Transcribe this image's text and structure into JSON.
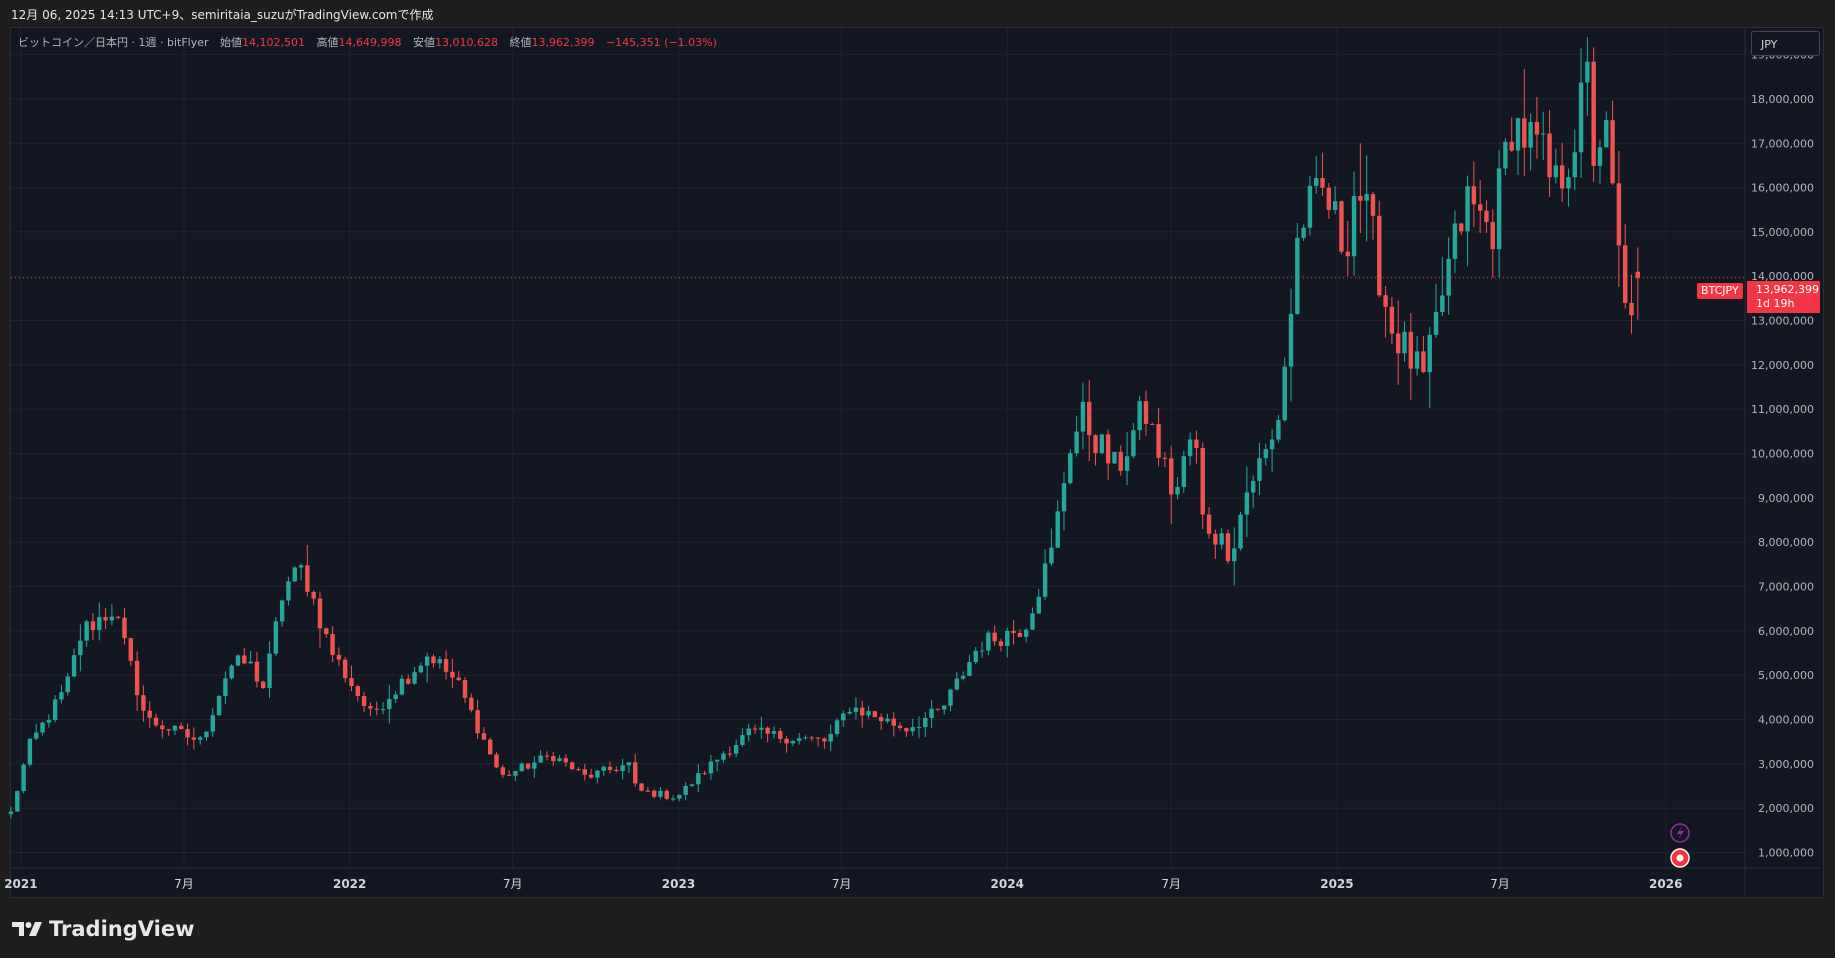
{
  "header": {
    "caption": "12月 06, 2025 14:13 UTC+9、semiritaia_suzuがTradingView.comで作成"
  },
  "legend": {
    "symbol": "ビットコイン／日本円 · 1週 · bitFlyer",
    "open_label": "始値",
    "open": "14,102,501",
    "high_label": "高値",
    "high": "14,649,998",
    "low_label": "安値",
    "low": "13,010,628",
    "close_label": "終値",
    "close": "13,962,399",
    "change": "−145,351 (−1.03%)"
  },
  "currency_button": "JPY",
  "last_price": {
    "symbol": "BTCJPY",
    "price": "13,962,399",
    "countdown": "1d 19h",
    "value": 13962399
  },
  "brand": {
    "name": "TradingView"
  },
  "colors": {
    "up": "#26a69a",
    "down": "#ef5350",
    "background": "#131722",
    "grid": "#1f2430",
    "price_line": "#f23645",
    "axis_text": "#b2b5be"
  },
  "icons": [
    "lightning-icon",
    "target-icon"
  ],
  "chart_data": {
    "type": "candlestick",
    "interval": "1週",
    "x_range": [
      "2020-12-21",
      "2026-03-30"
    ],
    "ylim": [
      650000,
      19600000
    ],
    "y_ticks": [
      1000000,
      2000000,
      3000000,
      4000000,
      5000000,
      6000000,
      7000000,
      8000000,
      9000000,
      10000000,
      11000000,
      12000000,
      13000000,
      14000000,
      15000000,
      16000000,
      17000000,
      18000000,
      19000000
    ],
    "y_tick_labels": [
      "1,000,000",
      "2,000,000",
      "3,000,000",
      "4,000,000",
      "5,000,000",
      "6,000,000",
      "7,000,000",
      "8,000,000",
      "9,000,000",
      "10,000,000",
      "11,000,000",
      "12,000,000",
      "13,000,000",
      "14,000,000",
      "15,000,000",
      "16,000,000",
      "17,000,000",
      "18,000,000",
      "19,000,000"
    ],
    "x_ticks": [
      {
        "date": "2021-01-01",
        "label": "2021",
        "bold": true
      },
      {
        "date": "2021-07-01",
        "label": "7月",
        "bold": false
      },
      {
        "date": "2022-01-01",
        "label": "2022",
        "bold": true
      },
      {
        "date": "2022-07-01",
        "label": "7月",
        "bold": false
      },
      {
        "date": "2023-01-01",
        "label": "2023",
        "bold": true
      },
      {
        "date": "2023-07-01",
        "label": "7月",
        "bold": false
      },
      {
        "date": "2024-01-01",
        "label": "2024",
        "bold": true
      },
      {
        "date": "2024-07-01",
        "label": "7月",
        "bold": false
      },
      {
        "date": "2025-01-01",
        "label": "2025",
        "bold": true
      },
      {
        "date": "2025-07-01",
        "label": "7月",
        "bold": false
      },
      {
        "date": "2026-01-01",
        "label": "2026",
        "bold": true
      }
    ],
    "first_week": "2020-12-21",
    "anchors": [
      [
        "2020-12-21",
        1900000
      ],
      [
        "2021-01-10",
        3400000
      ],
      [
        "2021-02-20",
        4700000
      ],
      [
        "2021-03-10",
        6000000
      ],
      [
        "2021-04-14",
        6500000
      ],
      [
        "2021-05-20",
        4000000
      ],
      [
        "2021-06-25",
        3700000
      ],
      [
        "2021-07-20",
        3500000
      ],
      [
        "2021-08-20",
        5200000
      ],
      [
        "2021-09-10",
        5300000
      ],
      [
        "2021-09-28",
        4700000
      ],
      [
        "2021-10-20",
        7000000
      ],
      [
        "2021-11-10",
        7400000
      ],
      [
        "2021-12-10",
        5600000
      ],
      [
        "2022-01-24",
        4100000
      ],
      [
        "2022-03-30",
        5500000
      ],
      [
        "2022-05-01",
        4800000
      ],
      [
        "2022-06-18",
        2700000
      ],
      [
        "2022-08-14",
        3200000
      ],
      [
        "2022-09-20",
        2700000
      ],
      [
        "2022-11-08",
        3000000
      ],
      [
        "2022-11-15",
        2400000
      ],
      [
        "2022-12-30",
        2250000
      ],
      [
        "2023-02-20",
        3250000
      ],
      [
        "2023-03-20",
        3700000
      ],
      [
        "2023-06-15",
        3500000
      ],
      [
        "2023-07-10",
        4300000
      ],
      [
        "2023-09-10",
        3800000
      ],
      [
        "2023-10-20",
        4200000
      ],
      [
        "2023-12-01",
        5700000
      ],
      [
        "2024-01-20",
        6100000
      ],
      [
        "2024-02-20",
        7800000
      ],
      [
        "2024-03-10",
        10200000
      ],
      [
        "2024-03-25",
        10800000
      ],
      [
        "2024-05-01",
        9600000
      ],
      [
        "2024-06-01",
        11000000
      ],
      [
        "2024-07-05",
        9000000
      ],
      [
        "2024-07-26",
        10600000
      ],
      [
        "2024-08-05",
        8500000
      ],
      [
        "2024-09-05",
        7800000
      ],
      [
        "2024-09-25",
        9300000
      ],
      [
        "2024-10-25",
        10400000
      ],
      [
        "2024-11-10",
        13000000
      ],
      [
        "2024-11-20",
        15200000
      ],
      [
        "2024-12-18",
        15900000
      ],
      [
        "2025-01-10",
        14600000
      ],
      [
        "2025-01-22",
        16200000
      ],
      [
        "2025-02-10",
        14800000
      ],
      [
        "2025-03-01",
        12900000
      ],
      [
        "2025-04-08",
        11600000
      ],
      [
        "2025-05-01",
        13900000
      ],
      [
        "2025-05-25",
        15700000
      ],
      [
        "2025-06-22",
        15000000
      ],
      [
        "2025-07-14",
        17500000
      ],
      [
        "2025-08-15",
        16800000
      ],
      [
        "2025-08-30",
        15900000
      ],
      [
        "2025-09-20",
        17000000
      ],
      [
        "2025-10-06",
        18400000
      ],
      [
        "2025-10-13",
        16800000
      ],
      [
        "2025-10-25",
        17400000
      ],
      [
        "2025-11-18",
        13000000
      ],
      [
        "2025-12-01",
        13962399
      ]
    ],
    "last_candle": {
      "open": 14102501,
      "high": 14649998,
      "low": 13010628,
      "close": 13962399
    }
  }
}
